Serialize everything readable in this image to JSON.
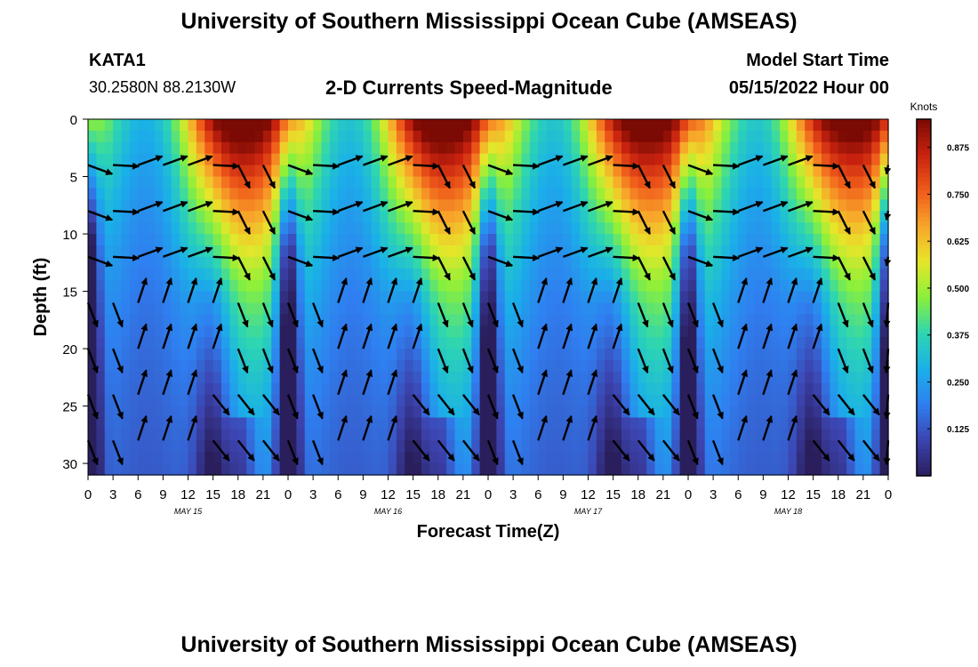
{
  "header": {
    "title": "University of Southern Mississippi Ocean Cube (AMSEAS)",
    "station": "KATA1",
    "coords": "30.2580N  88.2130W",
    "subtitle": "2-D Currents Speed-Magnitude",
    "model_label": "Model Start Time",
    "model_time": "05/15/2022 Hour 00"
  },
  "footer": {
    "title": "University of Southern Mississippi Ocean Cube (AMSEAS)"
  },
  "chart_data": {
    "type": "heatmap",
    "title": "2-D Currents Speed-Magnitude",
    "xlabel": "Forecast Time(Z)",
    "ylabel": "Depth (ft)",
    "x_range_hours": [
      0,
      96
    ],
    "y_range_ft": [
      0,
      31
    ],
    "x_tick_labels": [
      "0",
      "3",
      "6",
      "9",
      "12",
      "15",
      "18",
      "21",
      "0",
      "3",
      "6",
      "9",
      "12",
      "15",
      "18",
      "21",
      "0",
      "3",
      "6",
      "9",
      "12",
      "15",
      "18",
      "21",
      "0",
      "3",
      "6",
      "9",
      "12",
      "15",
      "18",
      "21",
      "0"
    ],
    "y_ticks": [
      0,
      5,
      10,
      15,
      20,
      25,
      30
    ],
    "day_labels": [
      {
        "label": "MAY 15",
        "hour": 12
      },
      {
        "label": "MAY 16",
        "hour": 36
      },
      {
        "label": "MAY 17",
        "hour": 60
      },
      {
        "label": "MAY 18",
        "hour": 84
      }
    ],
    "colorbar": {
      "unit": "Knots",
      "min": 0.0,
      "max": 0.95,
      "ticks": [
        "0.125",
        "0.250",
        "0.375",
        "0.500",
        "0.625",
        "0.750",
        "0.875"
      ],
      "colors": [
        "#2a1e5c",
        "#3c44b0",
        "#2f7ff0",
        "#1ab0e8",
        "#2ed6b0",
        "#8af03a",
        "#e6e62a",
        "#f8a52a",
        "#ef5a1a",
        "#c8220f",
        "#7a0a03"
      ]
    },
    "arrows": {
      "depths_ft": [
        4,
        8,
        12,
        16,
        20,
        24,
        28
      ],
      "interval_hours": 3,
      "note": "arrow directions vary with tidal cycle; speed shown by colour field"
    }
  }
}
